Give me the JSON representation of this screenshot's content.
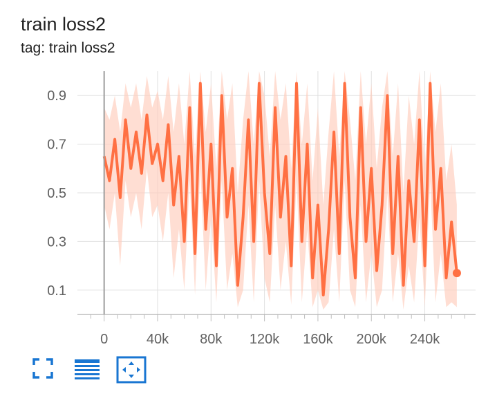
{
  "card": {
    "title": "train loss2",
    "subtitle": "tag: train loss2"
  },
  "chart_data": {
    "type": "line",
    "title": "train loss2",
    "xlabel": "",
    "ylabel": "",
    "xlim": [
      -20000,
      278000
    ],
    "ylim": [
      0,
      1.0
    ],
    "x_ticks": [
      0,
      40000,
      80000,
      120000,
      160000,
      200000,
      240000
    ],
    "x_tick_labels": [
      "0",
      "40k",
      "80k",
      "120k",
      "160k",
      "200k",
      "240k"
    ],
    "y_ticks": [
      0.1,
      0.3,
      0.5,
      0.7,
      0.9
    ],
    "y_tick_labels": [
      "0.1",
      "0.3",
      "0.5",
      "0.7",
      "0.9"
    ],
    "grid": true,
    "series": [
      {
        "color": "#ff7043",
        "raw_color": "#ffccbc",
        "x": [
          0,
          4000,
          8000,
          12000,
          16000,
          20000,
          24000,
          28000,
          32000,
          36000,
          40000,
          44000,
          48000,
          52000,
          56000,
          60000,
          64000,
          68000,
          72000,
          76000,
          80000,
          84000,
          88000,
          92000,
          96000,
          100000,
          104000,
          108000,
          112000,
          116000,
          120000,
          124000,
          128000,
          132000,
          136000,
          140000,
          144000,
          148000,
          152000,
          156000,
          160000,
          164000,
          168000,
          172000,
          176000,
          180000,
          184000,
          188000,
          192000,
          196000,
          200000,
          204000,
          208000,
          212000,
          216000,
          220000,
          224000,
          228000,
          232000,
          236000,
          240000,
          244000,
          248000,
          252000,
          256000,
          260000,
          264000
        ],
        "y": [
          0.65,
          0.55,
          0.72,
          0.48,
          0.8,
          0.6,
          0.75,
          0.58,
          0.82,
          0.62,
          0.7,
          0.55,
          0.78,
          0.45,
          0.65,
          0.3,
          0.85,
          0.25,
          0.95,
          0.35,
          0.7,
          0.2,
          0.9,
          0.4,
          0.6,
          0.12,
          0.4,
          0.8,
          0.3,
          0.95,
          0.5,
          0.25,
          0.85,
          0.4,
          0.65,
          0.2,
          0.95,
          0.3,
          0.7,
          0.15,
          0.45,
          0.08,
          0.35,
          0.75,
          0.25,
          0.95,
          0.4,
          0.15,
          0.85,
          0.3,
          0.6,
          0.18,
          0.45,
          0.9,
          0.25,
          0.65,
          0.12,
          0.55,
          0.3,
          0.8,
          0.2,
          0.95,
          0.35,
          0.6,
          0.15,
          0.38,
          0.17
        ],
        "raw_upper": [
          0.85,
          0.8,
          0.9,
          0.75,
          0.95,
          0.85,
          0.95,
          0.8,
          0.98,
          0.85,
          0.92,
          0.8,
          0.98,
          0.75,
          0.95,
          0.7,
          1.0,
          0.65,
          1.0,
          0.75,
          0.95,
          0.6,
          1.0,
          0.8,
          0.95,
          0.5,
          0.8,
          1.0,
          0.7,
          1.0,
          0.9,
          0.65,
          1.0,
          0.8,
          0.95,
          0.6,
          1.0,
          0.7,
          0.95,
          0.55,
          0.85,
          0.45,
          0.75,
          1.0,
          0.65,
          1.0,
          0.8,
          0.55,
          1.0,
          0.7,
          0.95,
          0.6,
          0.85,
          1.0,
          0.65,
          0.95,
          0.5,
          0.9,
          0.7,
          1.0,
          0.6,
          1.0,
          0.75,
          0.95,
          0.55,
          0.7,
          0.45
        ],
        "raw_lower": [
          0.45,
          0.35,
          0.5,
          0.2,
          0.55,
          0.4,
          0.5,
          0.35,
          0.6,
          0.4,
          0.45,
          0.3,
          0.5,
          0.15,
          0.35,
          0.1,
          0.55,
          0.08,
          0.6,
          0.1,
          0.4,
          0.05,
          0.55,
          0.1,
          0.25,
          0.03,
          0.1,
          0.45,
          0.05,
          0.55,
          0.15,
          0.05,
          0.45,
          0.1,
          0.3,
          0.04,
          0.55,
          0.05,
          0.35,
          0.03,
          0.1,
          0.02,
          0.05,
          0.35,
          0.05,
          0.55,
          0.1,
          0.03,
          0.45,
          0.05,
          0.25,
          0.03,
          0.1,
          0.5,
          0.05,
          0.25,
          0.02,
          0.2,
          0.05,
          0.4,
          0.03,
          0.55,
          0.05,
          0.25,
          0.03,
          0.05,
          0.03
        ]
      }
    ]
  },
  "toolbar": {
    "fullscreen_icon": "fullscreen-icon",
    "log_scale_icon": "lines-icon",
    "fit_domain_icon": "fit-domain-icon"
  }
}
